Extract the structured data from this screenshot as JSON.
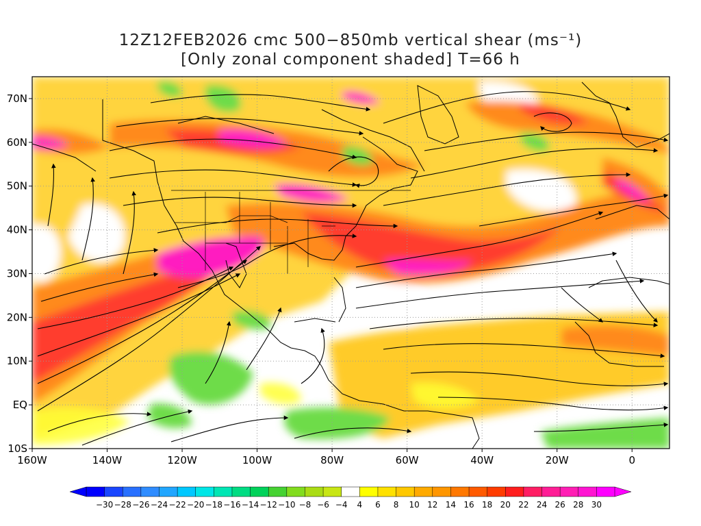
{
  "title": {
    "line1": "12Z12FEB2026 cmc 500−850mb vertical shear (ms⁻¹)",
    "line2": "[Only zonal component shaded] T=66 h"
  },
  "map": {
    "lon_range": [
      -160,
      10
    ],
    "lat_range": [
      -10,
      75
    ],
    "lat_ticks": [
      "70N",
      "60N",
      "50N",
      "40N",
      "30N",
      "20N",
      "10N",
      "EQ",
      "10S"
    ],
    "lat_values": [
      70,
      60,
      50,
      40,
      30,
      20,
      10,
      0,
      -10
    ],
    "lon_ticks": [
      "160W",
      "140W",
      "120W",
      "100W",
      "80W",
      "60W",
      "40W",
      "20W",
      "0"
    ],
    "lon_values": [
      -160,
      -140,
      -120,
      -100,
      -80,
      -60,
      -40,
      -20,
      0
    ],
    "grid": "dotted"
  },
  "colorbar": {
    "labels": [
      "−30",
      "−28",
      "−26",
      "−24",
      "−22",
      "−20",
      "−18",
      "−16",
      "−14",
      "−12",
      "−10",
      "−8",
      "−6",
      "−4",
      "4",
      "6",
      "8",
      "10",
      "12",
      "14",
      "16",
      "18",
      "20",
      "22",
      "24",
      "26",
      "28",
      "30"
    ],
    "colors": [
      "#0000ff",
      "#1a46ff",
      "#2870ff",
      "#2f8cff",
      "#21a6ff",
      "#00c8ff",
      "#00e6e6",
      "#00e6b4",
      "#00dc82",
      "#00d25a",
      "#46d232",
      "#82dc1e",
      "#aadc14",
      "#c8e614",
      "#ffffff",
      "#ffff00",
      "#ffe100",
      "#ffc800",
      "#ffaa00",
      "#ff9600",
      "#ff7800",
      "#ff5a00",
      "#ff3c00",
      "#ff1e1e",
      "#ff1e64",
      "#ff1e96",
      "#ff1eb4",
      "#ff14d2",
      "#ff00ff"
    ]
  },
  "shear_palette": {
    "negative": "#7ee25a",
    "low": "#ffff33",
    "moderate": "#ffb21c",
    "strong": "#ff6a1a",
    "jet": "#ff2f47",
    "core": "#ff1ec0"
  }
}
